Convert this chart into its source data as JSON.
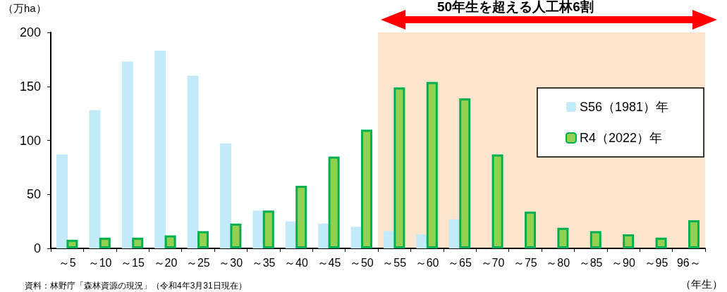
{
  "chart_data": {
    "type": "bar",
    "categories": [
      "～5",
      "～10",
      "～15",
      "～20",
      "～25",
      "～30",
      "～35",
      "～40",
      "～45",
      "～50",
      "～55",
      "～60",
      "～65",
      "～70",
      "～75",
      "～80",
      "～85",
      "～90",
      "～95",
      "96～"
    ],
    "series": [
      {
        "name": "S56（1981）年",
        "color": "#c3eaf8",
        "values": [
          87,
          128,
          173,
          183,
          160,
          97,
          35,
          25,
          23,
          20,
          16,
          13,
          27,
          null,
          null,
          null,
          null,
          null,
          null,
          null
        ]
      },
      {
        "name": "R4（2022）年",
        "color": "#92d050",
        "values": [
          8,
          10,
          10,
          12,
          16,
          23,
          35,
          58,
          85,
          110,
          149,
          154,
          139,
          87,
          34,
          19,
          16,
          13,
          10,
          26
        ]
      }
    ],
    "ylabel": "（万ha）",
    "xlabel": "（年生）",
    "ylim": [
      0,
      200
    ],
    "yticks": [
      0,
      50,
      100,
      150,
      200
    ],
    "bands": [
      {
        "axis": "x",
        "from": "～55",
        "to": "96～",
        "color": "#fde4cc"
      }
    ],
    "annotations": [
      "50年生を超える人工林6割",
      "資料：林野庁「森林資源の現況」（令和4年3月31日現在）"
    ],
    "legend": "top right",
    "grid": false
  }
}
